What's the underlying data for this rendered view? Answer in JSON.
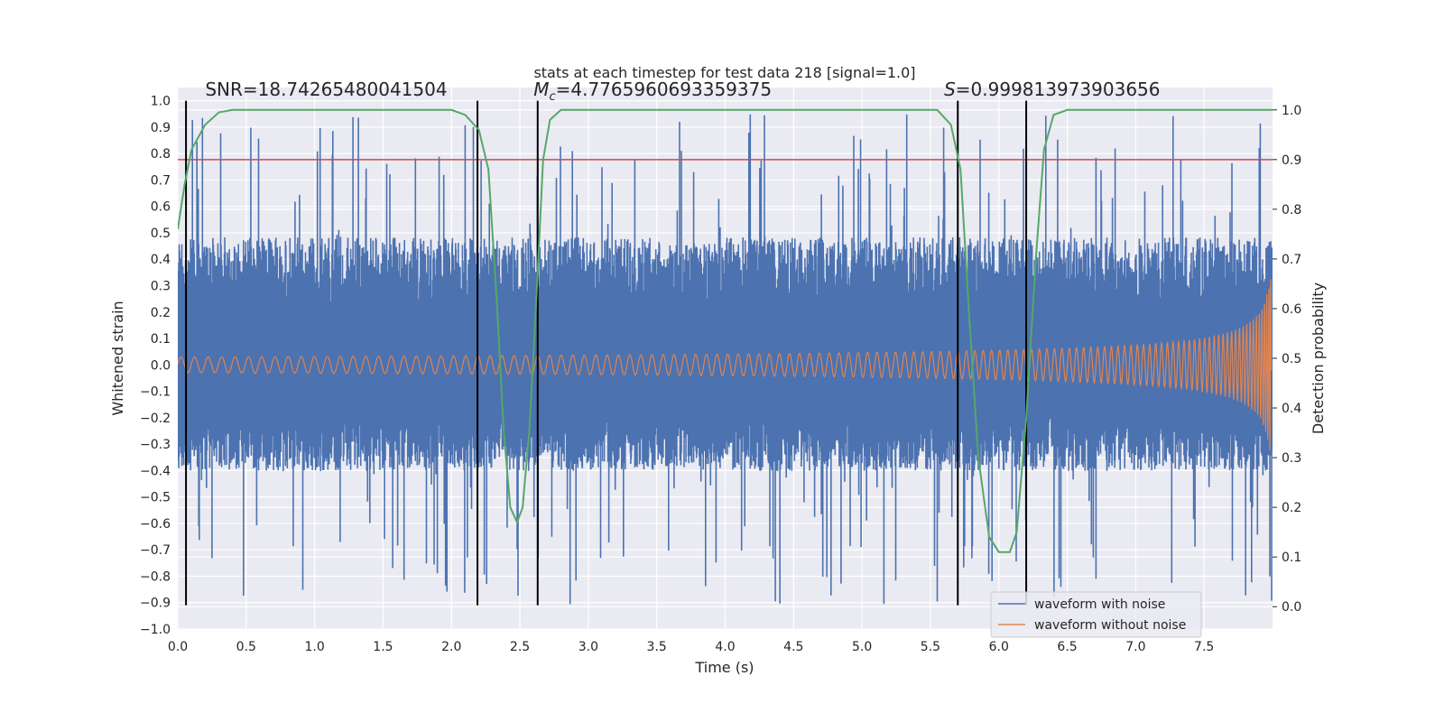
{
  "chart_data": {
    "type": "line",
    "title": "stats at each timestep for test data 218 [signal=1.0]",
    "xlabel": "Time (s)",
    "ylabel": "Whitened strain",
    "y2label": "Detection probability",
    "xlim": [
      0.0,
      8.0
    ],
    "ylim": [
      -1.0,
      1.05
    ],
    "y2lim": [
      -0.045,
      1.045
    ],
    "xticks": [
      "0.0",
      "0.5",
      "1.0",
      "1.5",
      "2.0",
      "2.5",
      "3.0",
      "3.5",
      "4.0",
      "4.5",
      "5.0",
      "5.5",
      "6.0",
      "6.5",
      "7.0",
      "7.5"
    ],
    "yticks": [
      "1.0",
      "0.9",
      "0.8",
      "0.7",
      "0.6",
      "0.5",
      "0.4",
      "0.3",
      "0.2",
      "0.1",
      "0.0",
      "−0.1",
      "−0.2",
      "−0.3",
      "−0.4",
      "−0.5",
      "−0.6",
      "−0.7",
      "−0.8",
      "−0.9",
      "−1.0"
    ],
    "y2ticks": [
      "1.0",
      "0.9",
      "0.8",
      "0.7",
      "0.6",
      "0.5",
      "0.4",
      "0.3",
      "0.2",
      "0.1",
      "0.0"
    ],
    "grid": true,
    "legend_position": "lower-right",
    "series": [
      {
        "name": "waveform with noise",
        "color": "#4c72b0",
        "noise_band": [
          -0.35,
          0.42
        ],
        "spike_max": 0.95,
        "spike_min": -0.91
      },
      {
        "name": "waveform without noise",
        "color": "#dd8452",
        "amplitude_start": 0.03,
        "amplitude_end": 0.49
      }
    ],
    "probability_curve": {
      "color": "#55a868",
      "x": [
        0.0,
        0.05,
        0.1,
        0.2,
        0.3,
        0.4,
        0.5,
        1.0,
        1.5,
        2.0,
        2.1,
        2.2,
        2.27,
        2.33,
        2.38,
        2.43,
        2.48,
        2.52,
        2.57,
        2.62,
        2.67,
        2.72,
        2.8,
        3.0,
        4.0,
        5.0,
        5.55,
        5.65,
        5.72,
        5.78,
        5.85,
        5.93,
        6.0,
        6.08,
        6.13,
        6.2,
        6.27,
        6.33,
        6.4,
        6.5,
        7.0,
        8.0
      ],
      "y": [
        0.76,
        0.85,
        0.92,
        0.97,
        0.995,
        1.0,
        1.0,
        1.0,
        1.0,
        1.0,
        0.99,
        0.96,
        0.88,
        0.62,
        0.36,
        0.2,
        0.17,
        0.2,
        0.36,
        0.62,
        0.9,
        0.98,
        1.0,
        1.0,
        1.0,
        1.0,
        1.0,
        0.97,
        0.88,
        0.6,
        0.3,
        0.14,
        0.11,
        0.11,
        0.15,
        0.38,
        0.7,
        0.92,
        0.99,
        1.0,
        1.0,
        1.0
      ]
    },
    "threshold": {
      "value": 0.9,
      "axis": "right",
      "color": "#c44e52"
    },
    "vertical_lines": {
      "x": [
        0.06,
        2.19,
        2.63,
        5.7,
        6.2
      ],
      "ymin": -0.91,
      "ymax": 1.0,
      "color": "#000000"
    },
    "annotations": [
      {
        "text": "SNR=18.74265480041504",
        "x": 0.2,
        "y": 1.02
      },
      {
        "text": "=4.7765960693359375",
        "symbol": "M",
        "subscript": "c",
        "x": 2.6,
        "y": 1.02
      },
      {
        "text": "=0.999813973903656",
        "symbol": "S",
        "x": 5.6,
        "y": 1.02
      }
    ]
  }
}
